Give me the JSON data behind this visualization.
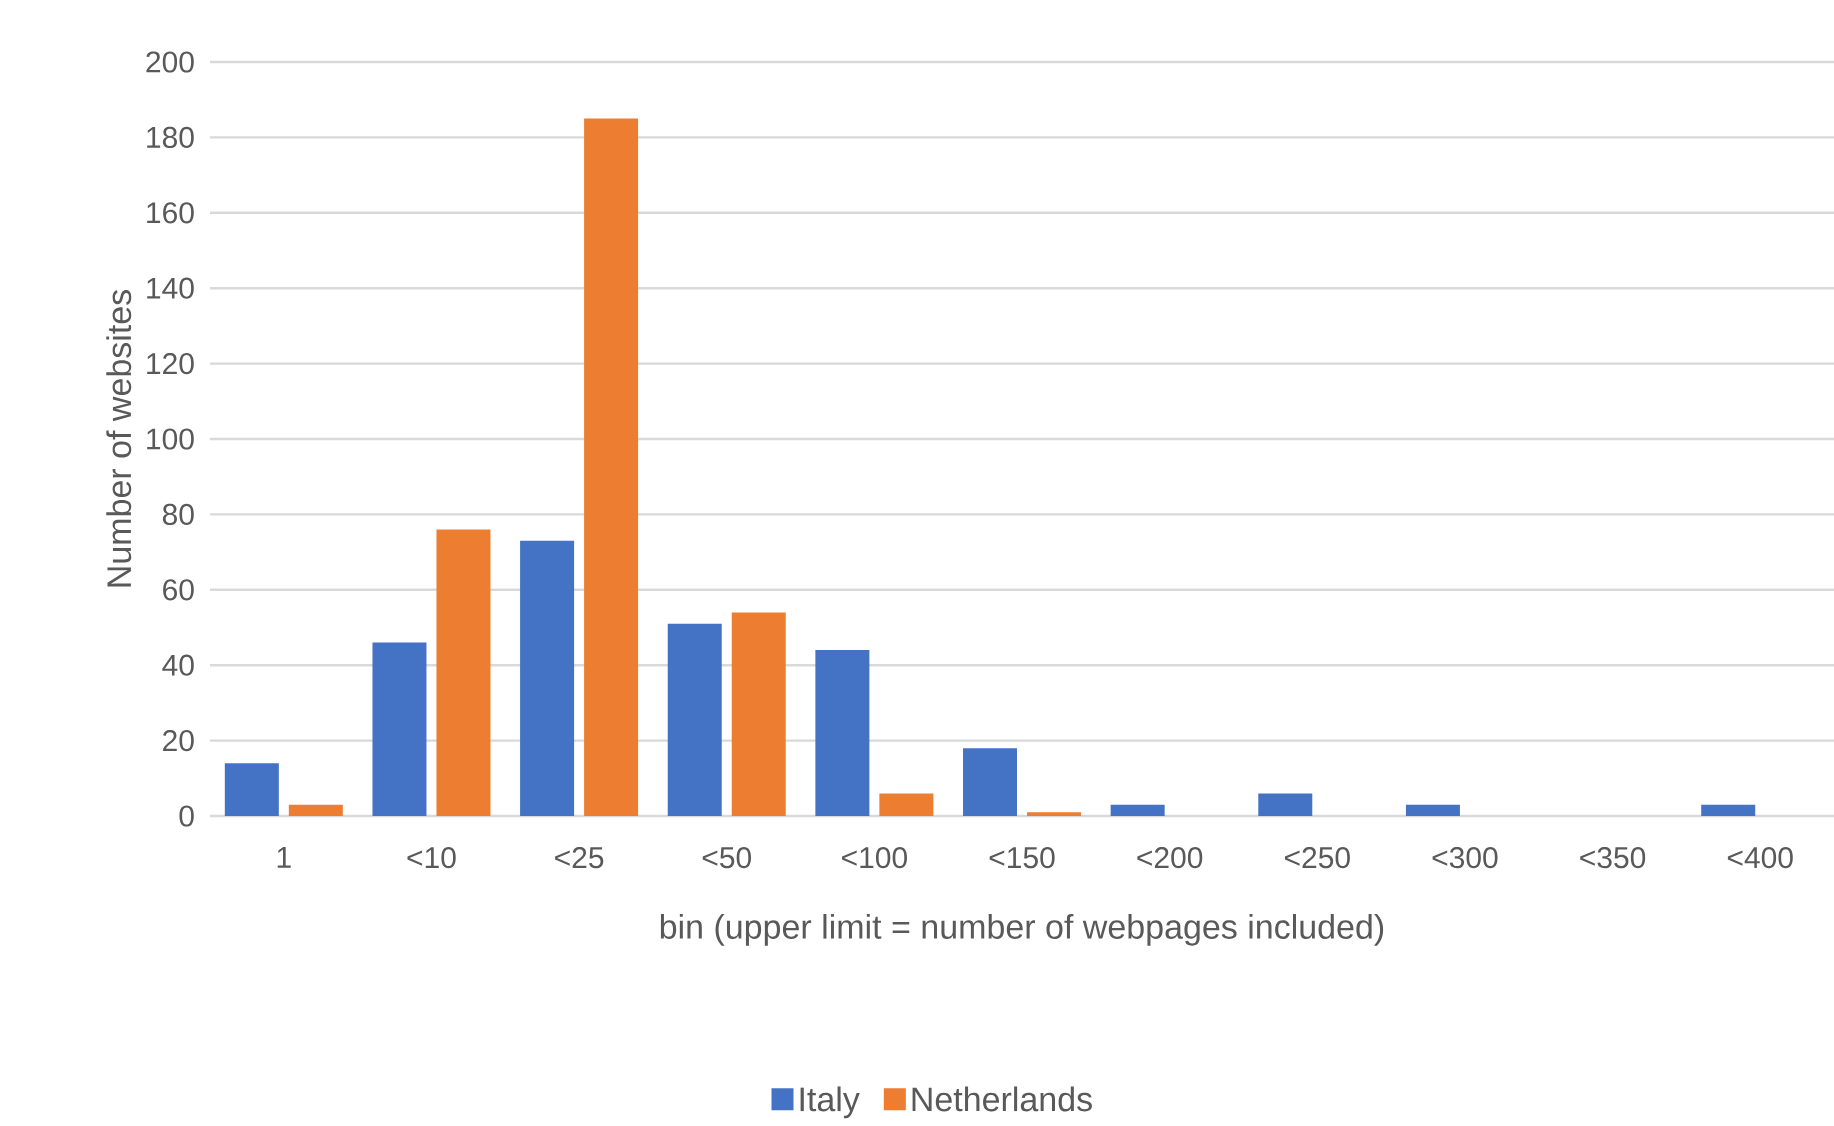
{
  "chart_data": {
    "type": "bar",
    "xlabel": "bin (upper limit = number of webpages included)",
    "ylabel": "Number  of websites",
    "categories": [
      "1",
      "<10",
      "<25",
      "<50",
      "<100",
      "<150",
      "<200",
      "<250",
      "<300",
      "<350",
      "<400"
    ],
    "series": [
      {
        "name": "Italy",
        "color": "#4472c4",
        "values": [
          14,
          46,
          73,
          51,
          44,
          18,
          3,
          6,
          3,
          0,
          3
        ]
      },
      {
        "name": "Netherlands",
        "color": "#ed7d31",
        "values": [
          3,
          76,
          185,
          54,
          6,
          1,
          0,
          0,
          0,
          0,
          0
        ]
      }
    ],
    "ylim": [
      0,
      200
    ],
    "yticks": [
      0,
      20,
      40,
      60,
      80,
      100,
      120,
      140,
      160,
      180,
      200
    ],
    "grid": "y",
    "legend": "bottom"
  }
}
